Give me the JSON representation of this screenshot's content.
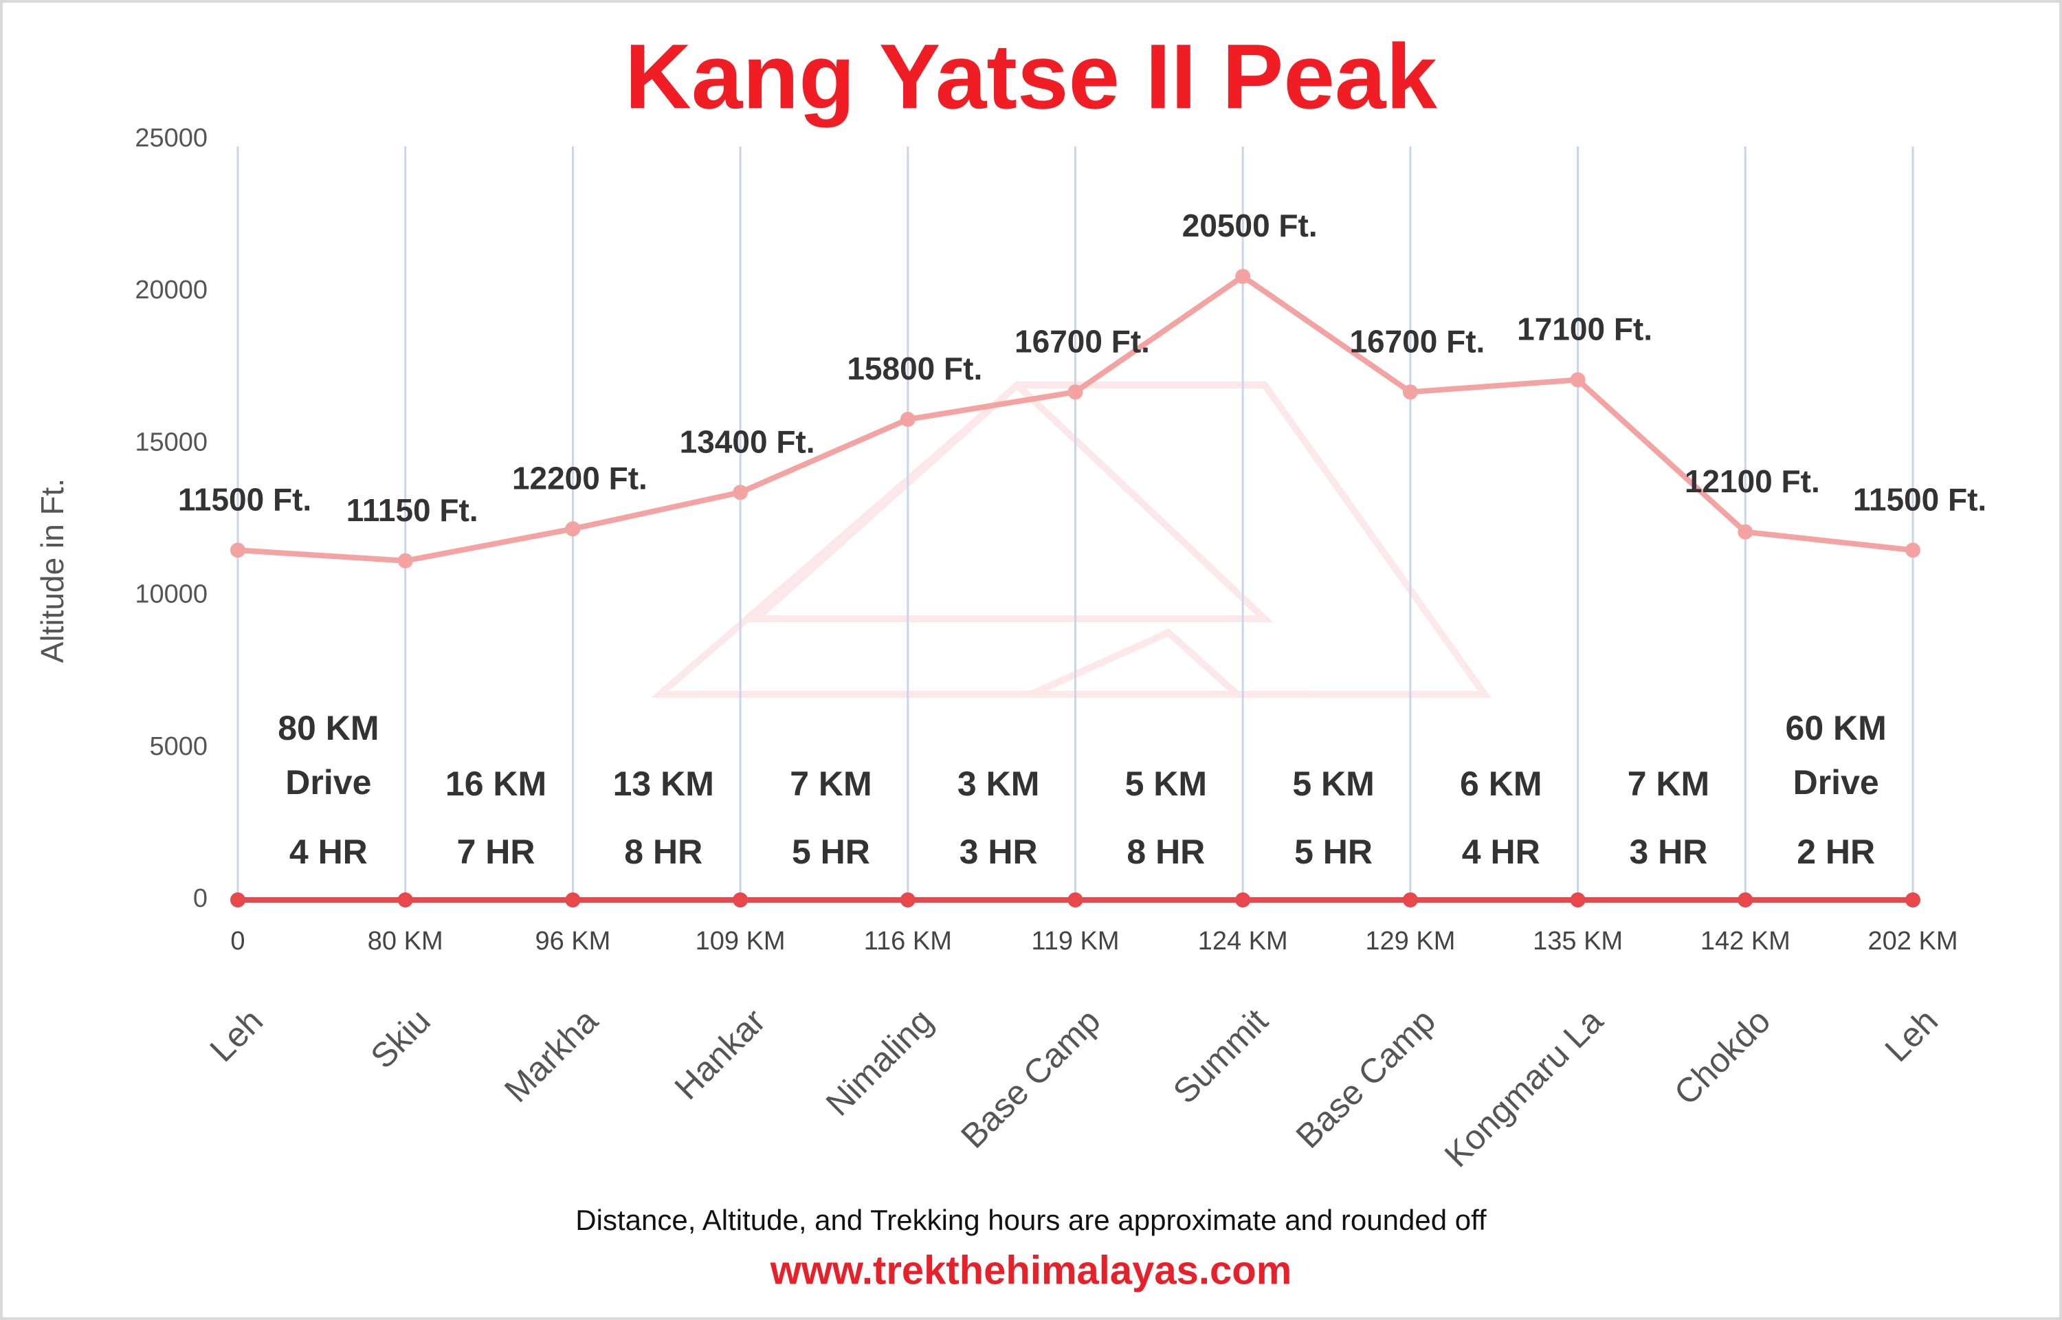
{
  "chart_data": {
    "type": "line",
    "title": "Kang Yatse II Peak",
    "y_label": "Altitude in Ft.",
    "categories": [
      "Leh",
      "Skiu",
      "Markha",
      "Hankar",
      "Nimaling",
      "Base Camp",
      "Summit",
      "Base Camp",
      "Kongmaru La",
      "Chokdo",
      "Leh"
    ],
    "distances": [
      "0",
      "80 KM",
      "96 KM",
      "109 KM",
      "116 KM",
      "119 KM",
      "124 KM",
      "129 KM",
      "135 KM",
      "142 KM",
      "202 KM"
    ],
    "series": [
      {
        "name": "Altitude",
        "color": "#f4a3a3",
        "values": [
          11500,
          11150,
          12200,
          13400,
          15800,
          16700,
          20500,
          16700,
          17100,
          12100,
          11500
        ],
        "value_labels": [
          "11500 Ft.",
          "11150 Ft.",
          "12200 Ft.",
          "13400 Ft.",
          "15800 Ft.",
          "16700 Ft.",
          "20500 Ft.",
          "16700 Ft.",
          "17100 Ft.",
          "12100 Ft.",
          "11500 Ft."
        ]
      },
      {
        "color": "#e8474c",
        "values": [
          0,
          0,
          0,
          0,
          0,
          0,
          0,
          0,
          0,
          0,
          0
        ]
      }
    ],
    "segments": [
      {
        "distance": "80  KM",
        "mode": "Drive",
        "time": "4 HR"
      },
      {
        "distance": "16 KM",
        "time": "7 HR"
      },
      {
        "distance": "13 KM",
        "time": "8 HR"
      },
      {
        "distance": "7 KM",
        "time": "5 HR"
      },
      {
        "distance": "3 KM",
        "time": "3 HR"
      },
      {
        "distance": "5 KM",
        "time": "8 HR"
      },
      {
        "distance": "5 KM",
        "time": "5 HR"
      },
      {
        "distance": "6 KM",
        "time": "4 HR"
      },
      {
        "distance": "7 KM",
        "time": "3 HR"
      },
      {
        "distance": "60  KM",
        "mode": "Drive",
        "time": "2 HR"
      }
    ],
    "ylim": [
      0,
      25000
    ],
    "yticks": [
      0,
      5000,
      10000,
      15000,
      20000,
      25000
    ],
    "grid": true,
    "note": "Distance, Altitude,  and Trekking hours are approximate and rounded  off",
    "website": "www.trekthehimalayas.com"
  }
}
